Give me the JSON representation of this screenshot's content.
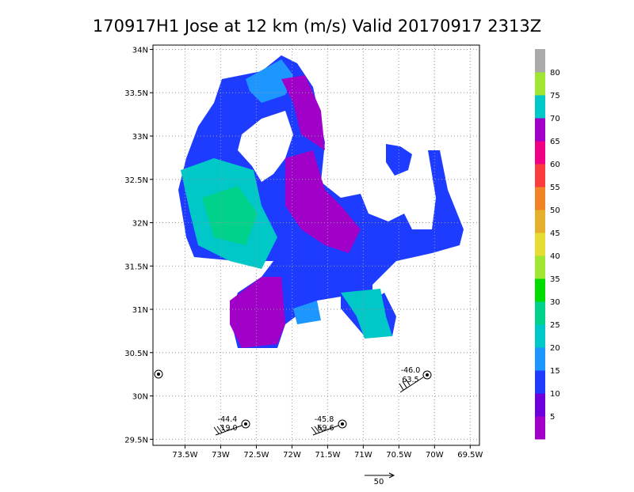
{
  "title": "170917H1 Jose at 12 km (m/s) Valid 20170917 2313Z",
  "map": {
    "xlim": [
      -73.95,
      -69.37
    ],
    "ylim": [
      29.43,
      34.05
    ],
    "xticks": [
      {
        "value": -73.5,
        "label": "73.5W"
      },
      {
        "value": -73,
        "label": "73W"
      },
      {
        "value": -72.5,
        "label": "72.5W"
      },
      {
        "value": -72,
        "label": "72W"
      },
      {
        "value": -71.5,
        "label": "71.5W"
      },
      {
        "value": -71,
        "label": "71W"
      },
      {
        "value": -70.5,
        "label": "70.5W"
      },
      {
        "value": -70,
        "label": "70W"
      },
      {
        "value": -69.5,
        "label": "69.5W"
      }
    ],
    "yticks": [
      {
        "value": 29.5,
        "label": "29.5N"
      },
      {
        "value": 30,
        "label": "30N"
      },
      {
        "value": 30.5,
        "label": "30.5N"
      },
      {
        "value": 31,
        "label": "31N"
      },
      {
        "value": 31.5,
        "label": "31.5N"
      },
      {
        "value": 32,
        "label": "32N"
      },
      {
        "value": 32.5,
        "label": "32.5N"
      },
      {
        "value": 33,
        "label": "33N"
      },
      {
        "value": 33.5,
        "label": "33.5N"
      },
      {
        "value": 34,
        "label": "34N"
      }
    ],
    "grid": true
  },
  "colorbar": {
    "levels": [
      5,
      10,
      15,
      20,
      25,
      30,
      35,
      40,
      45,
      50,
      55,
      60,
      65,
      70,
      75,
      80
    ],
    "colors": [
      "#a000c8",
      "#6e00dc",
      "#1e3cff",
      "#1e96ff",
      "#00c8c8",
      "#00d28c",
      "#00dc00",
      "#a0e632",
      "#e6dc32",
      "#e6af2d",
      "#f08228",
      "#fa3c3c",
      "#f00082",
      "#a000c8",
      "#00c8c8",
      "#a0e632",
      "#aaaaaa"
    ]
  },
  "soundings": [
    {
      "labels": [
        "-44.4",
        "19.0"
      ]
    },
    {
      "labels": [
        "-45.8",
        "69.6"
      ]
    },
    {
      "labels": [
        "-46.0",
        "63.5"
      ]
    }
  ],
  "reference_vector_label": "50"
}
